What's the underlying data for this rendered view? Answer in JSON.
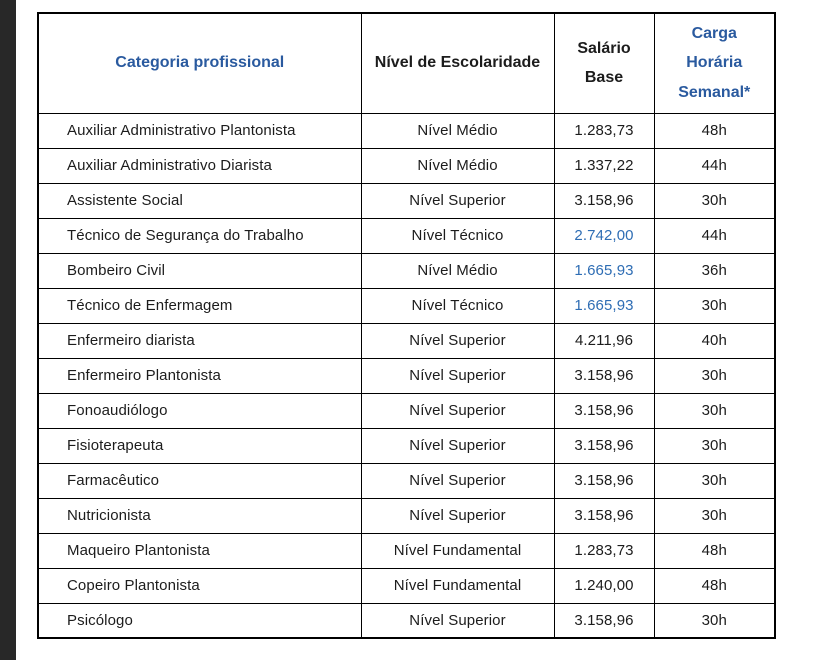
{
  "colors": {
    "page_bg": "#ffffff",
    "left_bar": "#282828",
    "border": "#000000",
    "header_blue": "#2a5a9f",
    "value_blue": "#2e6db4",
    "text": "#1c1c1c"
  },
  "table": {
    "columns": [
      {
        "key": "categoria",
        "label": "Categoria profissional",
        "blue": true
      },
      {
        "key": "nivel",
        "label": "Nível de Escolaridade",
        "blue": false
      },
      {
        "key": "salario",
        "label": "Salário\nBase",
        "blue": false
      },
      {
        "key": "carga",
        "label": "Carga\nHorária\nSemanal*",
        "blue": true
      }
    ],
    "rows": [
      {
        "categoria": "Auxiliar Administrativo Plantonista",
        "nivel": "Nível Médio",
        "salario": "1.283,73",
        "salario_blue": false,
        "carga": "48h"
      },
      {
        "categoria": "Auxiliar Administrativo Diarista",
        "nivel": "Nível Médio",
        "salario": "1.337,22",
        "salario_blue": false,
        "carga": "44h"
      },
      {
        "categoria": "Assistente Social",
        "nivel": "Nível Superior",
        "salario": "3.158,96",
        "salario_blue": false,
        "carga": "30h"
      },
      {
        "categoria": "Técnico de Segurança do Trabalho",
        "nivel": "Nível Técnico",
        "salario": "2.742,00",
        "salario_blue": true,
        "carga": "44h"
      },
      {
        "categoria": "Bombeiro Civil",
        "nivel": "Nível Médio",
        "salario": "1.665,93",
        "salario_blue": true,
        "carga": "36h"
      },
      {
        "categoria": "Técnico de Enfermagem",
        "nivel": "Nível Técnico",
        "salario": "1.665,93",
        "salario_blue": true,
        "carga": "30h"
      },
      {
        "categoria": "Enfermeiro diarista",
        "nivel": "Nível Superior",
        "salario": "4.211,96",
        "salario_blue": false,
        "carga": "40h"
      },
      {
        "categoria": "Enfermeiro Plantonista",
        "nivel": "Nível Superior",
        "salario": "3.158,96",
        "salario_blue": false,
        "carga": "30h"
      },
      {
        "categoria": "Fonoaudiólogo",
        "nivel": "Nível Superior",
        "salario": "3.158,96",
        "salario_blue": false,
        "carga": "30h"
      },
      {
        "categoria": "Fisioterapeuta",
        "nivel": "Nível Superior",
        "salario": "3.158,96",
        "salario_blue": false,
        "carga": "30h"
      },
      {
        "categoria": "Farmacêutico",
        "nivel": "Nível Superior",
        "salario": "3.158,96",
        "salario_blue": false,
        "carga": "30h"
      },
      {
        "categoria": "Nutricionista",
        "nivel": "Nível Superior",
        "salario": "3.158,96",
        "salario_blue": false,
        "carga": "30h"
      },
      {
        "categoria": "Maqueiro Plantonista",
        "nivel": "Nível Fundamental",
        "salario": "1.283,73",
        "salario_blue": false,
        "carga": "48h"
      },
      {
        "categoria": "Copeiro Plantonista",
        "nivel": "Nível Fundamental",
        "salario": "1.240,00",
        "salario_blue": false,
        "carga": "48h"
      },
      {
        "categoria": "Psicólogo",
        "nivel": "Nível Superior",
        "salario": "3.158,96",
        "salario_blue": false,
        "carga": "30h"
      }
    ]
  }
}
